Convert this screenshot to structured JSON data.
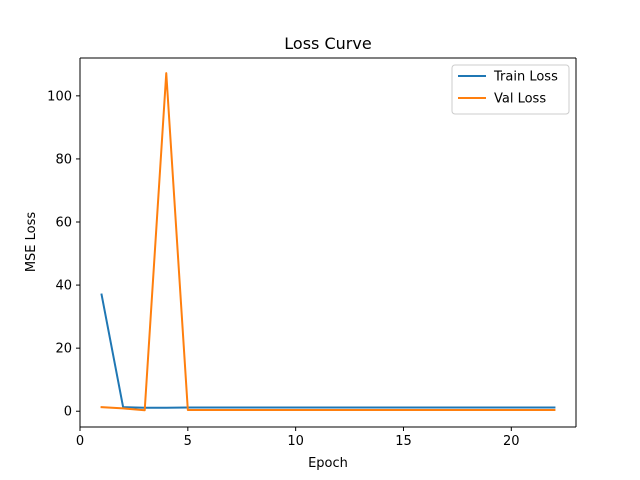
{
  "chart_data": {
    "type": "line",
    "title": "Loss Curve",
    "xlabel": "Epoch",
    "ylabel": "MSE Loss",
    "xlim": [
      0,
      23
    ],
    "ylim": [
      -5,
      112
    ],
    "xticks": [
      0,
      5,
      10,
      15,
      20
    ],
    "yticks": [
      0,
      20,
      40,
      60,
      80,
      100
    ],
    "grid": false,
    "legend_position": "top-right",
    "series": [
      {
        "name": "Train Loss",
        "color": "#1f77b4",
        "x": [
          1,
          2,
          3,
          4,
          5,
          6,
          7,
          8,
          9,
          10,
          11,
          12,
          13,
          14,
          15,
          16,
          17,
          18,
          19,
          20,
          21,
          22
        ],
        "values": [
          37.0,
          1.3,
          1.1,
          1.1,
          1.2,
          1.2,
          1.2,
          1.2,
          1.2,
          1.2,
          1.2,
          1.2,
          1.2,
          1.2,
          1.2,
          1.2,
          1.2,
          1.2,
          1.2,
          1.2,
          1.2,
          1.2
        ]
      },
      {
        "name": "Val Loss",
        "color": "#ff7f0e",
        "x": [
          1,
          2,
          3,
          4,
          5,
          6,
          7,
          8,
          9,
          10,
          11,
          12,
          13,
          14,
          15,
          16,
          17,
          18,
          19,
          20,
          21,
          22
        ],
        "values": [
          1.3,
          0.9,
          0.3,
          107.2,
          0.4,
          0.4,
          0.4,
          0.4,
          0.4,
          0.4,
          0.4,
          0.4,
          0.4,
          0.4,
          0.4,
          0.4,
          0.4,
          0.4,
          0.4,
          0.4,
          0.4,
          0.4
        ]
      }
    ]
  }
}
